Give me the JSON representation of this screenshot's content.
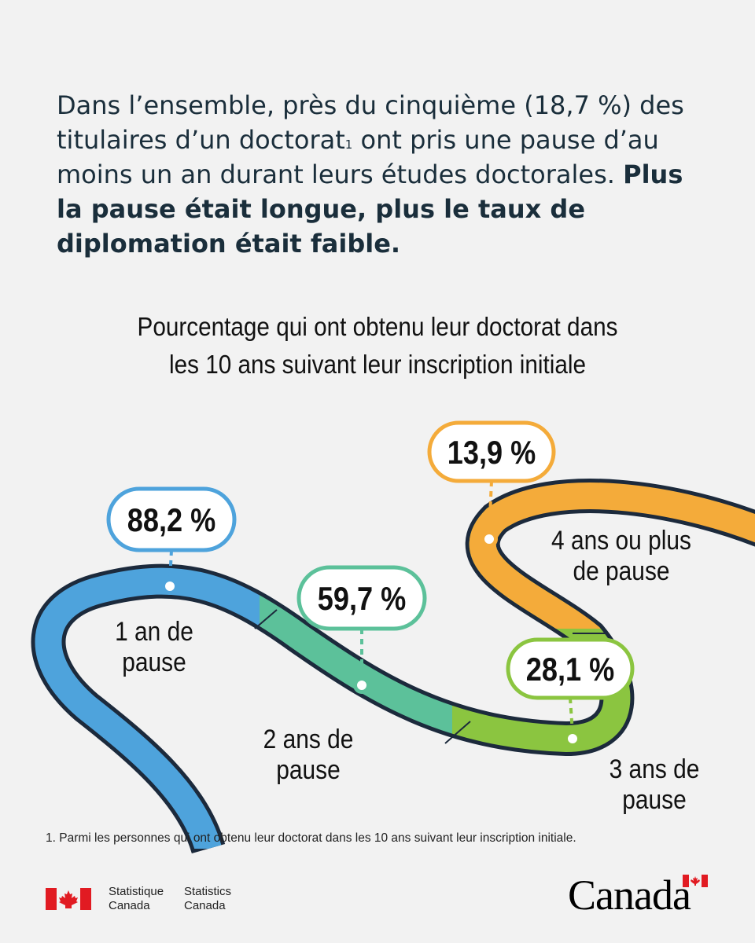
{
  "intro": {
    "text_1": "Dans l’ensemble, près du cinquième (18,7 %) des titulaires d’un doctorat",
    "sup": "1",
    "text_2": " ont pris une pause d’au moins un an durant leurs études doctorales. ",
    "bold": "Plus la pause était longue, plus le taux de diplomation était faible."
  },
  "chart_data": {
    "type": "line",
    "title": "Pourcentage qui ont obtenu leur doctorat dans les 10 ans suivant leur inscription initiale",
    "categories": [
      "1 an de pause",
      "2 ans de pause",
      "3 ans de pause",
      "4 ans ou plus de pause"
    ],
    "values": [
      88.2,
      59.7,
      28.1,
      13.9
    ],
    "value_labels": [
      "88,2 %",
      "59,7 %",
      "28,1 %",
      "13,9 %"
    ],
    "category_lines": [
      [
        "1 an de",
        "pause"
      ],
      [
        "2 ans de",
        "pause"
      ],
      [
        "3 ans de",
        "pause"
      ],
      [
        "4 ans ou plus",
        "de pause"
      ]
    ],
    "colors": [
      "#4ea3dc",
      "#5cc19a",
      "#8bc540",
      "#f4ab3a"
    ]
  },
  "footnote": "1. Parmi les personnes qui ont obtenu leur doctorat dans les 10 ans suivant leur inscription initiale.",
  "footer": {
    "signature_fr": [
      "Statistique",
      "Canada"
    ],
    "signature_en": [
      "Statistics",
      "Canada"
    ],
    "wordmark": "Canada",
    "flag_color": "#e11b22"
  }
}
